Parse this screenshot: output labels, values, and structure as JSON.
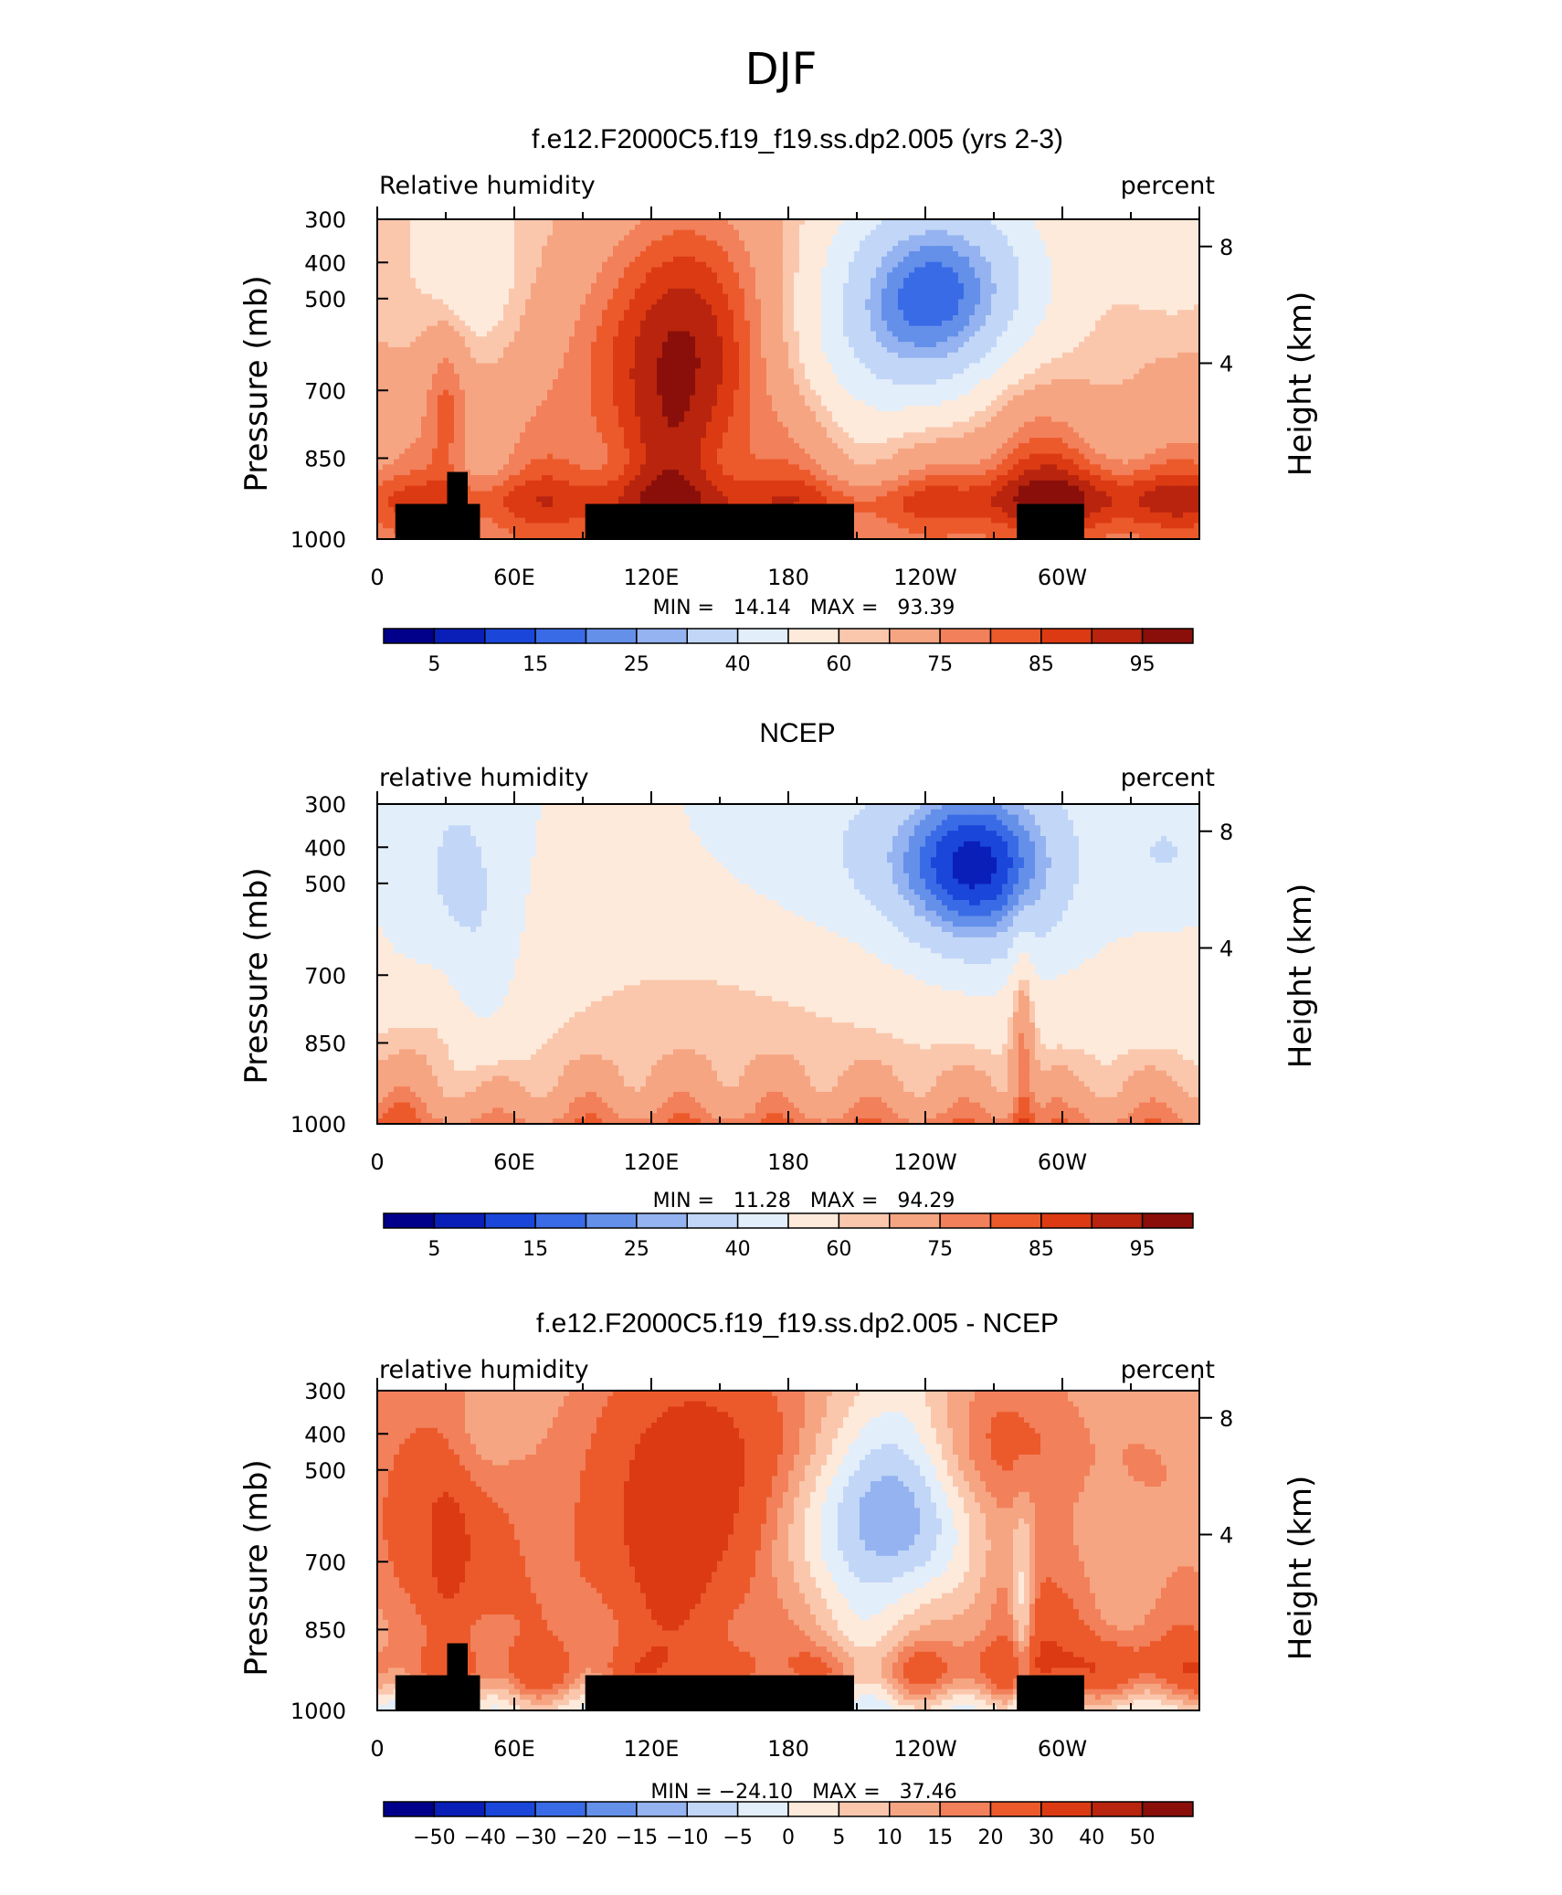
{
  "figure_title": "DJF",
  "colors": {
    "rh_scale": [
      "#00008b",
      "#0a1fb8",
      "#1a46d9",
      "#3a6be6",
      "#6490ea",
      "#94b3f0",
      "#c2d6f7",
      "#e3eefb",
      "#fdeadb",
      "#fac7ad",
      "#f6a582",
      "#f2805a",
      "#ec5a2c",
      "#dc3a12",
      "#b8240d",
      "#8a0f0a"
    ],
    "diff_scale": [
      "#00008b",
      "#0a1fb8",
      "#1a46d9",
      "#3a6be6",
      "#6490ea",
      "#94b3f0",
      "#c2d6f7",
      "#e3eefb",
      "#fdeadb",
      "#fac7ad",
      "#f6a582",
      "#f2805a",
      "#ec5a2c",
      "#dc3a12",
      "#b8240d",
      "#8a0f0a"
    ],
    "terrain": "#000000"
  },
  "chart_data": [
    {
      "type": "heatmap",
      "title": "f.e12.F2000C5.f19_f19.ss.dp2.005 (yrs 2-3)",
      "left_label": "Relative humidity",
      "right_label": "percent",
      "ylabel": "Pressure (mb)",
      "ylabel2": "Height (km)",
      "y_ticks": [
        "300",
        "400",
        "500",
        "700",
        "850",
        "1000"
      ],
      "y2_ticks": [
        "8",
        "4"
      ],
      "x_ticks": [
        "0",
        "60E",
        "120E",
        "180",
        "120W",
        "60W"
      ],
      "stats": "MIN =   14.14   MAX =   93.39",
      "colorbar_labels": [
        "5",
        "15",
        "25",
        "40",
        "60",
        "75",
        "85",
        "95"
      ],
      "scale": "rh",
      "field": "model",
      "terrain": true
    },
    {
      "type": "heatmap",
      "title": "NCEP",
      "left_label": "relative humidity",
      "right_label": "percent",
      "ylabel": "Pressure (mb)",
      "ylabel2": "Height (km)",
      "y_ticks": [
        "300",
        "400",
        "500",
        "700",
        "850",
        "1000"
      ],
      "y2_ticks": [
        "8",
        "4"
      ],
      "x_ticks": [
        "0",
        "60E",
        "120E",
        "180",
        "120W",
        "60W"
      ],
      "stats": "MIN =   11.28   MAX =   94.29",
      "colorbar_labels": [
        "5",
        "15",
        "25",
        "40",
        "60",
        "75",
        "85",
        "95"
      ],
      "scale": "rh",
      "field": "obs",
      "terrain": false
    },
    {
      "type": "heatmap",
      "title": "f.e12.F2000C5.f19_f19.ss.dp2.005 - NCEP",
      "left_label": "relative humidity",
      "right_label": "percent",
      "ylabel": "Pressure (mb)",
      "ylabel2": "Height (km)",
      "y_ticks": [
        "300",
        "400",
        "500",
        "700",
        "850",
        "1000"
      ],
      "y2_ticks": [
        "8",
        "4"
      ],
      "x_ticks": [
        "0",
        "60E",
        "120E",
        "180",
        "120W",
        "60W"
      ],
      "stats": "MIN = −24.10   MAX =   37.46",
      "colorbar_labels": [
        "−50",
        "−40",
        "−30",
        "−20",
        "−15",
        "−10",
        "−5",
        "0",
        "5",
        "10",
        "15",
        "20",
        "30",
        "40",
        "50"
      ],
      "scale": "diff",
      "field": "diff",
      "terrain": true
    }
  ]
}
